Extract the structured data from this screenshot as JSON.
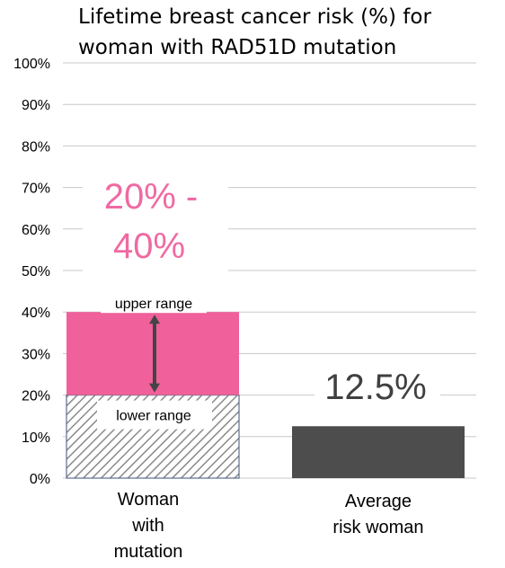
{
  "chart_data": {
    "type": "bar",
    "title_lines": [
      "Lifetime breast cancer risk (%) for",
      "woman with RAD51D mutation"
    ],
    "ylim": [
      0,
      100
    ],
    "y_ticks": [
      0,
      10,
      20,
      30,
      40,
      50,
      60,
      70,
      80,
      90,
      100
    ],
    "y_tick_labels": [
      "0%",
      "10%",
      "20%",
      "30%",
      "40%",
      "50%",
      "60%",
      "70%",
      "80%",
      "90%",
      "100%"
    ],
    "grid": true,
    "categories": [
      {
        "lines": [
          "Woman",
          "with",
          "mutation"
        ]
      },
      {
        "lines": [
          "Average",
          "risk woman"
        ]
      }
    ],
    "bars": [
      {
        "category": 0,
        "kind": "range",
        "lower": 20,
        "upper": 40,
        "range_label_lines": [
          "20% -",
          "40%"
        ],
        "upper_label": "upper range",
        "lower_label": "lower range"
      },
      {
        "category": 1,
        "kind": "value",
        "value": 12.5,
        "value_label": "12.5%"
      }
    ],
    "colors": {
      "upper_range": "#f0609a",
      "range_label": "#ef6aa2",
      "hatch": "#8a8a8a",
      "hatch_border": "#5a6e8c",
      "average_bar": "#4d4d4d",
      "value_label": "#404040",
      "arrow": "#444444",
      "grid": "#c8c8c8"
    }
  }
}
